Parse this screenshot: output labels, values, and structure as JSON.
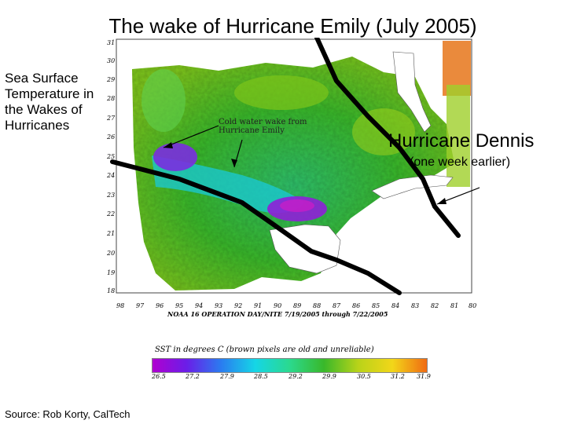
{
  "title": "The wake of Hurricane Emily (July 2005)",
  "side_caption": "Sea Surface Temperature in the Wakes of Hurricanes",
  "map": {
    "annotation_wake": "Cold water wake from Hurricane Emily",
    "lat_labels": [
      "31",
      "30",
      "29",
      "28",
      "27",
      "26",
      "25",
      "24",
      "23",
      "22",
      "21",
      "20",
      "19",
      "18"
    ],
    "lon_labels": [
      "98",
      "97",
      "96",
      "95",
      "94",
      "93",
      "92",
      "91",
      "90",
      "89",
      "88",
      "87",
      "86",
      "85",
      "84",
      "83",
      "82",
      "81",
      "80"
    ],
    "credit": "NOAA 16 OPERATION DAY/NITE 7/19/2005 through 7/22/2005"
  },
  "dennis": {
    "label": "Hurricane Dennis",
    "sublabel": "(one week earlier)"
  },
  "legend": {
    "title": "SST in degrees C (brown pixels are old and unreliable)",
    "ticks": [
      "26.5",
      "27.2",
      "27.9",
      "28.5",
      "29.2",
      "29.9",
      "30.5",
      "31.2",
      "31.9"
    ],
    "color_stops": [
      "#b000d0",
      "#6a1ee8",
      "#2a7cf0",
      "#15d6e6",
      "#2bd98e",
      "#39b82a",
      "#b9d319",
      "#f2d619",
      "#f06a12"
    ]
  },
  "source": "Source: Rob Korty, CalTech"
}
